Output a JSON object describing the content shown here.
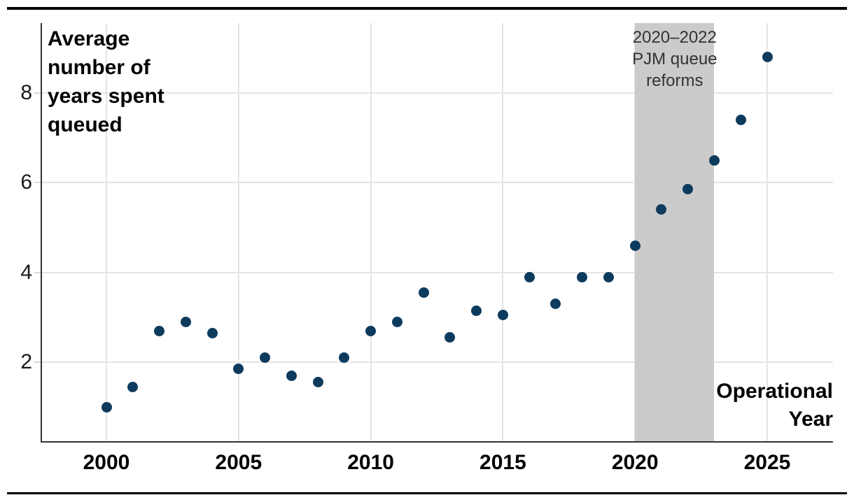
{
  "figure": {
    "y_axis_title": "Average\nnumber of\nyears spent\nqueued",
    "x_axis_title": "Operational\nYear",
    "band_annotation": "2020–2022\nPJM queue\nreforms"
  },
  "colors": {
    "point": "#0d3b5e",
    "band": "#cbcbcb",
    "gridline": "#e4e4e4",
    "axis": "#333333",
    "rule": "#000000"
  },
  "chart_data": {
    "type": "scatter",
    "title": "",
    "xlabel": "Operational Year",
    "ylabel": "Average number of years spent queued",
    "x": [
      2000,
      2001,
      2002,
      2003,
      2004,
      2005,
      2006,
      2007,
      2008,
      2009,
      2010,
      2011,
      2012,
      2013,
      2014,
      2015,
      2016,
      2017,
      2018,
      2019,
      2020,
      2021,
      2022,
      2023,
      2024,
      2025
    ],
    "values": [
      1.0,
      1.45,
      2.7,
      2.9,
      2.65,
      1.85,
      2.1,
      1.7,
      1.55,
      2.1,
      2.7,
      2.9,
      3.55,
      2.55,
      3.15,
      3.05,
      3.9,
      3.3,
      3.9,
      3.9,
      4.6,
      5.4,
      5.85,
      6.5,
      7.4,
      8.8
    ],
    "x_ticks": [
      2000,
      2005,
      2010,
      2015,
      2020,
      2025
    ],
    "y_ticks": [
      2,
      4,
      6,
      8
    ],
    "xlim": [
      1997.6,
      2027.4
    ],
    "ylim": [
      0.2,
      9.55
    ],
    "grid": true,
    "legend": false,
    "point_color": "#0d3b5e",
    "annotation_band": {
      "x_start": 2020,
      "x_end": 2023,
      "label": "2020–2022 PJM queue reforms",
      "color": "#cbcbcb"
    }
  }
}
